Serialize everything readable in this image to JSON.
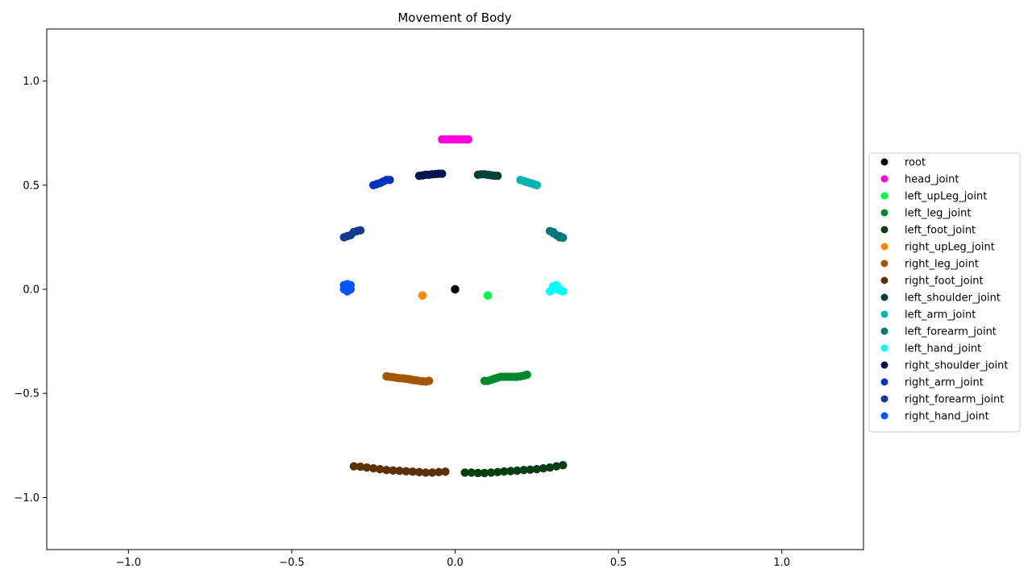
{
  "chart_data": {
    "type": "scatter",
    "title": "Movement of Body",
    "xlabel": "",
    "ylabel": "",
    "xlim": [
      -1.25,
      1.25
    ],
    "ylim": [
      -1.25,
      1.25
    ],
    "x_ticks": [
      -1.0,
      -0.5,
      0.0,
      0.5,
      1.0
    ],
    "x_tick_labels": [
      "−1.0",
      "−0.5",
      "0.0",
      "0.5",
      "1.0"
    ],
    "y_ticks": [
      1.0,
      0.5,
      0.0,
      -0.5,
      -1.0
    ],
    "y_tick_labels": [
      "1.0",
      "0.5",
      "0.0",
      "−0.5",
      "−1.0"
    ],
    "grid": false,
    "legend_position": "center-right-outside",
    "series": [
      {
        "name": "root",
        "color": "#000000",
        "x": [
          0.0,
          0.0
        ],
        "y": [
          0.0,
          0.0
        ]
      },
      {
        "name": "head_joint",
        "color": "#ff00dd",
        "x": [
          -0.04,
          -0.03,
          -0.02,
          -0.01,
          0.0,
          0.01,
          0.02,
          0.03,
          0.04
        ],
        "y": [
          0.72,
          0.72,
          0.72,
          0.72,
          0.72,
          0.72,
          0.72,
          0.72,
          0.72
        ]
      },
      {
        "name": "left_upLeg_joint",
        "color": "#00ff44",
        "x": [
          0.1,
          0.1
        ],
        "y": [
          -0.03,
          -0.03
        ]
      },
      {
        "name": "left_leg_joint",
        "color": "#00882a",
        "x": [
          0.09,
          0.1,
          0.11,
          0.12,
          0.13,
          0.14,
          0.15,
          0.16,
          0.17,
          0.18,
          0.19,
          0.2,
          0.21,
          0.22
        ],
        "y": [
          -0.44,
          -0.44,
          -0.435,
          -0.43,
          -0.425,
          -0.42,
          -0.42,
          -0.42,
          -0.42,
          -0.42,
          -0.42,
          -0.418,
          -0.415,
          -0.41
        ]
      },
      {
        "name": "left_foot_joint",
        "color": "#003d10",
        "x": [
          0.03,
          0.05,
          0.07,
          0.09,
          0.11,
          0.13,
          0.15,
          0.17,
          0.19,
          0.21,
          0.23,
          0.25,
          0.27,
          0.29,
          0.31,
          0.33
        ],
        "y": [
          -0.88,
          -0.88,
          -0.882,
          -0.882,
          -0.88,
          -0.878,
          -0.875,
          -0.873,
          -0.871,
          -0.868,
          -0.866,
          -0.864,
          -0.86,
          -0.856,
          -0.85,
          -0.845
        ]
      },
      {
        "name": "right_upLeg_joint",
        "color": "#ff8800",
        "x": [
          -0.1,
          -0.1
        ],
        "y": [
          -0.03,
          -0.03
        ]
      },
      {
        "name": "right_leg_joint",
        "color": "#a35500",
        "x": [
          -0.21,
          -0.2,
          -0.19,
          -0.18,
          -0.17,
          -0.16,
          -0.15,
          -0.14,
          -0.13,
          -0.12,
          -0.11,
          -0.1,
          -0.09,
          -0.08
        ],
        "y": [
          -0.418,
          -0.42,
          -0.422,
          -0.425,
          -0.427,
          -0.428,
          -0.43,
          -0.432,
          -0.435,
          -0.437,
          -0.44,
          -0.442,
          -0.443,
          -0.44
        ]
      },
      {
        "name": "right_foot_joint",
        "color": "#5c3000",
        "x": [
          -0.31,
          -0.29,
          -0.27,
          -0.25,
          -0.23,
          -0.21,
          -0.19,
          -0.17,
          -0.15,
          -0.13,
          -0.11,
          -0.09,
          -0.07,
          -0.05,
          -0.03
        ],
        "y": [
          -0.85,
          -0.852,
          -0.856,
          -0.86,
          -0.864,
          -0.868,
          -0.87,
          -0.872,
          -0.874,
          -0.876,
          -0.878,
          -0.88,
          -0.88,
          -0.878,
          -0.876
        ]
      },
      {
        "name": "left_shoulder_joint",
        "color": "#00403a",
        "x": [
          0.07,
          0.08,
          0.09,
          0.1,
          0.11,
          0.12,
          0.13
        ],
        "y": [
          0.55,
          0.552,
          0.552,
          0.55,
          0.548,
          0.546,
          0.545
        ]
      },
      {
        "name": "left_arm_joint",
        "color": "#00b5b0",
        "x": [
          0.2,
          0.21,
          0.22,
          0.23,
          0.24,
          0.25
        ],
        "y": [
          0.525,
          0.52,
          0.515,
          0.51,
          0.505,
          0.5
        ]
      },
      {
        "name": "left_forearm_joint",
        "color": "#007878",
        "x": [
          0.29,
          0.3,
          0.31,
          0.32,
          0.33,
          0.3,
          0.32
        ],
        "y": [
          0.28,
          0.27,
          0.26,
          0.25,
          0.248,
          0.275,
          0.255
        ]
      },
      {
        "name": "left_hand_joint",
        "color": "#00ffff",
        "x": [
          0.29,
          0.3,
          0.31,
          0.32,
          0.33,
          0.3,
          0.31,
          0.32
        ],
        "y": [
          -0.01,
          0.0,
          0.01,
          0.0,
          -0.01,
          0.015,
          0.02,
          -0.005
        ]
      },
      {
        "name": "right_shoulder_joint",
        "color": "#00154d",
        "x": [
          -0.11,
          -0.1,
          -0.09,
          -0.08,
          -0.07,
          -0.06,
          -0.05,
          -0.04
        ],
        "y": [
          0.545,
          0.547,
          0.55,
          0.55,
          0.552,
          0.553,
          0.555,
          0.555
        ]
      },
      {
        "name": "right_arm_joint",
        "color": "#0033bb",
        "x": [
          -0.25,
          -0.24,
          -0.23,
          -0.22,
          -0.21,
          -0.2
        ],
        "y": [
          0.5,
          0.505,
          0.51,
          0.518,
          0.525,
          0.525
        ]
      },
      {
        "name": "right_forearm_joint",
        "color": "#123a8f",
        "x": [
          -0.34,
          -0.33,
          -0.32,
          -0.31,
          -0.3,
          -0.29
        ],
        "y": [
          0.25,
          0.255,
          0.26,
          0.275,
          0.28,
          0.283
        ]
      },
      {
        "name": "right_hand_joint",
        "color": "#0055ff",
        "x": [
          -0.34,
          -0.33,
          -0.32,
          -0.34,
          -0.33,
          -0.32,
          -0.33
        ],
        "y": [
          0.0,
          0.01,
          0.02,
          0.02,
          -0.01,
          0.0,
          0.025
        ]
      }
    ]
  }
}
